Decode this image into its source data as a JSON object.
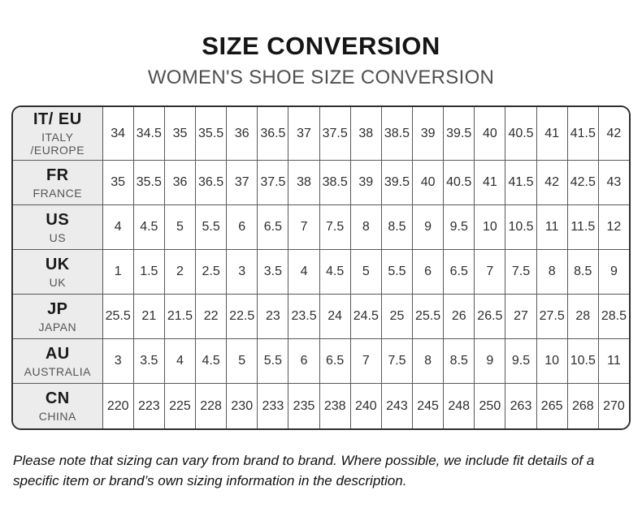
{
  "title": "SIZE CONVERSION",
  "subtitle": "WOMEN'S SHOE SIZE CONVERSION",
  "footer_note": "Please note that sizing can vary from brand to brand. Where possible, we include fit details of a specific item or brand’s own sizing information in the description.",
  "colors": {
    "header_cell_bg": "#ececec",
    "outer_border": "#2e2e2e",
    "grid_line": "#595959",
    "title_text": "#151515",
    "subtitle_text": "#4f4f4f"
  },
  "chart_data": {
    "type": "table",
    "title": "SIZE CONVERSION",
    "subtitle": "WOMEN'S SHOE SIZE CONVERSION",
    "columns_per_row": 17,
    "rows": [
      {
        "code": "IT/ EU",
        "region": "ITALY /EUROPE",
        "values": [
          "34",
          "34.5",
          "35",
          "35.5",
          "36",
          "36.5",
          "37",
          "37.5",
          "38",
          "38.5",
          "39",
          "39.5",
          "40",
          "40.5",
          "41",
          "41.5",
          "42"
        ]
      },
      {
        "code": "FR",
        "region": "FRANCE",
        "values": [
          "35",
          "35.5",
          "36",
          "36.5",
          "37",
          "37.5",
          "38",
          "38.5",
          "39",
          "39.5",
          "40",
          "40.5",
          "41",
          "41.5",
          "42",
          "42.5",
          "43"
        ]
      },
      {
        "code": "US",
        "region": "US",
        "values": [
          "4",
          "4.5",
          "5",
          "5.5",
          "6",
          "6.5",
          "7",
          "7.5",
          "8",
          "8.5",
          "9",
          "9.5",
          "10",
          "10.5",
          "11",
          "11.5",
          "12"
        ]
      },
      {
        "code": "UK",
        "region": "UK",
        "values": [
          "1",
          "1.5",
          "2",
          "2.5",
          "3",
          "3.5",
          "4",
          "4.5",
          "5",
          "5.5",
          "6",
          "6.5",
          "7",
          "7.5",
          "8",
          "8.5",
          "9"
        ]
      },
      {
        "code": "JP",
        "region": "JAPAN",
        "values": [
          "25.5",
          "21",
          "21.5",
          "22",
          "22.5",
          "23",
          "23.5",
          "24",
          "24.5",
          "25",
          "25.5",
          "26",
          "26.5",
          "27",
          "27.5",
          "28",
          "28.5"
        ]
      },
      {
        "code": "AU",
        "region": "AUSTRALIA",
        "values": [
          "3",
          "3.5",
          "4",
          "4.5",
          "5",
          "5.5",
          "6",
          "6.5",
          "7",
          "7.5",
          "8",
          "8.5",
          "9",
          "9.5",
          "10",
          "10.5",
          "11"
        ]
      },
      {
        "code": "CN",
        "region": "CHINA",
        "values": [
          "220",
          "223",
          "225",
          "228",
          "230",
          "233",
          "235",
          "238",
          "240",
          "243",
          "245",
          "248",
          "250",
          "263",
          "265",
          "268",
          "270"
        ]
      }
    ]
  }
}
